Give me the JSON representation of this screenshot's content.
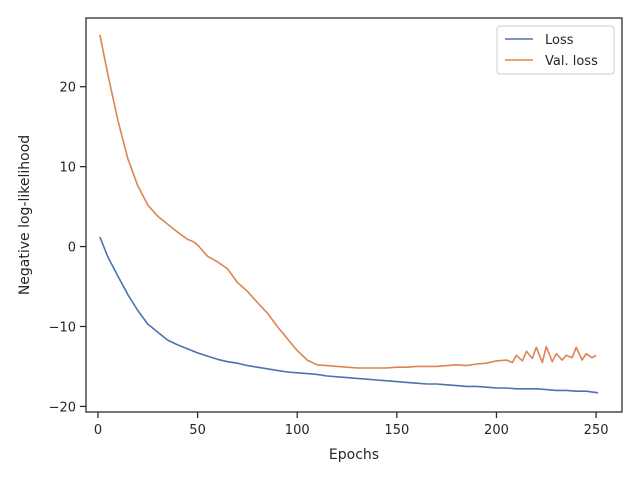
{
  "chart_data": {
    "type": "line",
    "title": "",
    "xlabel": "Epochs",
    "ylabel": "Negative log-likelihood",
    "xlim": [
      -6,
      263
    ],
    "ylim": [
      -20.7,
      28.6
    ],
    "xticks": [
      0,
      50,
      100,
      150,
      200,
      250
    ],
    "yticks": [
      -20,
      -10,
      0,
      10,
      20
    ],
    "grid": false,
    "legend_position": "top-right",
    "series": [
      {
        "name": "Loss",
        "color": "#4c72b0",
        "x": [
          1,
          5,
          10,
          15,
          20,
          25,
          30,
          35,
          40,
          45,
          50,
          55,
          60,
          65,
          70,
          75,
          80,
          85,
          90,
          95,
          100,
          105,
          110,
          115,
          120,
          125,
          130,
          135,
          140,
          145,
          150,
          155,
          160,
          165,
          170,
          175,
          180,
          185,
          190,
          195,
          200,
          205,
          210,
          215,
          220,
          225,
          230,
          235,
          240,
          245,
          251
        ],
        "y": [
          1.2,
          -1.3,
          -3.7,
          -6.0,
          -8.0,
          -9.7,
          -10.7,
          -11.7,
          -12.3,
          -12.8,
          -13.3,
          -13.7,
          -14.1,
          -14.4,
          -14.6,
          -14.9,
          -15.1,
          -15.3,
          -15.5,
          -15.7,
          -15.8,
          -15.9,
          -16.0,
          -16.2,
          -16.3,
          -16.4,
          -16.5,
          -16.6,
          -16.7,
          -16.8,
          -16.9,
          -17.0,
          -17.1,
          -17.2,
          -17.2,
          -17.3,
          -17.4,
          -17.5,
          -17.5,
          -17.6,
          -17.7,
          -17.7,
          -17.8,
          -17.8,
          -17.8,
          -17.9,
          -18.0,
          -18.0,
          -18.1,
          -18.1,
          -18.3
        ]
      },
      {
        "name": "Val. loss",
        "color": "#dd8452",
        "x": [
          1,
          5,
          10,
          15,
          20,
          25,
          30,
          35,
          40,
          45,
          48,
          50,
          55,
          60,
          65,
          68,
          70,
          75,
          80,
          85,
          90,
          95,
          100,
          105,
          110,
          115,
          120,
          125,
          130,
          135,
          140,
          145,
          150,
          155,
          160,
          165,
          170,
          175,
          180,
          185,
          190,
          195,
          200,
          205,
          208,
          210,
          213,
          215,
          218,
          220,
          223,
          225,
          228,
          230,
          233,
          235,
          238,
          240,
          243,
          245,
          248,
          250
        ],
        "y": [
          26.5,
          21.5,
          15.8,
          11.0,
          7.6,
          5.2,
          3.8,
          2.8,
          1.8,
          0.9,
          0.6,
          0.2,
          -1.2,
          -1.9,
          -2.8,
          -3.8,
          -4.5,
          -5.6,
          -7.0,
          -8.3,
          -10.0,
          -11.5,
          -13.0,
          -14.2,
          -14.8,
          -14.9,
          -15.0,
          -15.1,
          -15.2,
          -15.2,
          -15.2,
          -15.2,
          -15.1,
          -15.1,
          -15.0,
          -15.0,
          -15.0,
          -14.9,
          -14.8,
          -14.9,
          -14.7,
          -14.6,
          -14.3,
          -14.2,
          -14.5,
          -13.6,
          -14.3,
          -13.1,
          -14.0,
          -12.6,
          -14.5,
          -12.5,
          -14.4,
          -13.4,
          -14.2,
          -13.6,
          -13.9,
          -12.6,
          -14.2,
          -13.4,
          -13.9,
          -13.6
        ]
      }
    ]
  }
}
